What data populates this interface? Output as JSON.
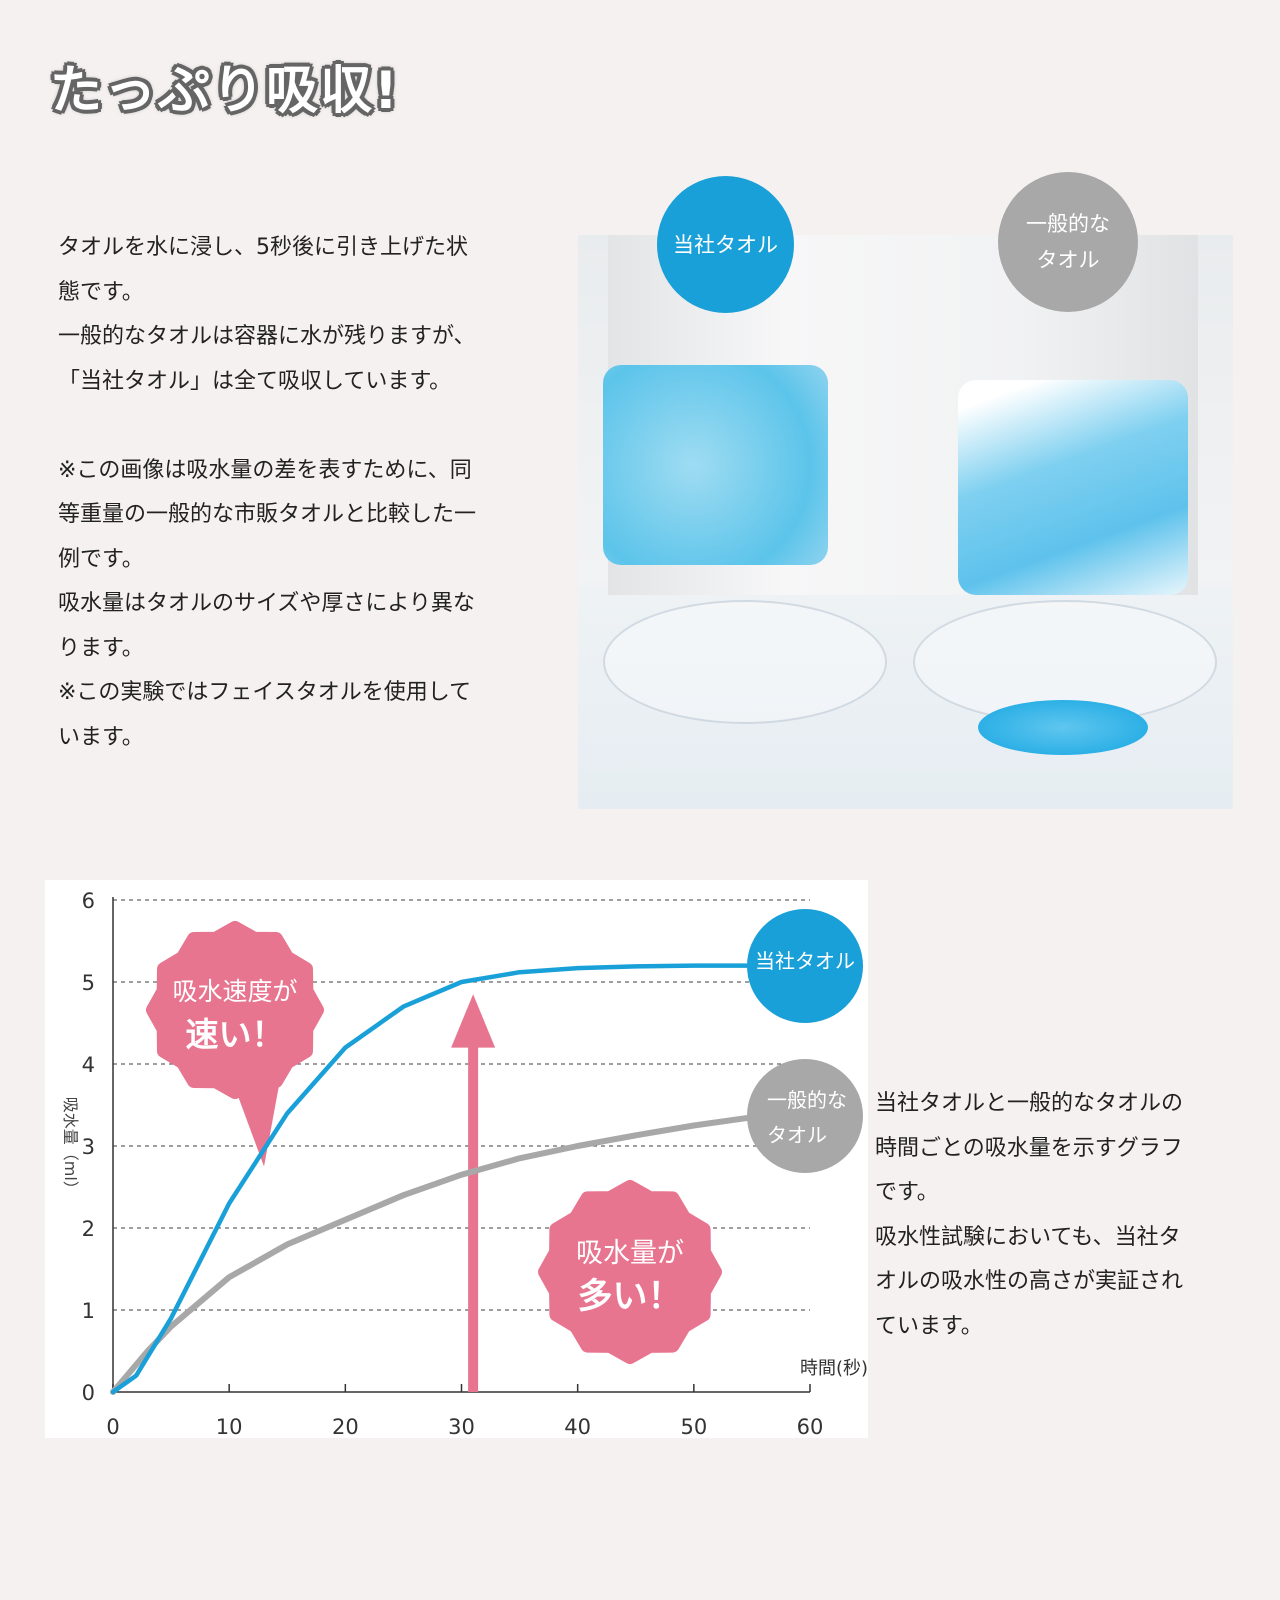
{
  "heading": "たっぷり吸収!",
  "left_text": {
    "lines": [
      "タオルを水に浸し、5秒後に引き上げた状",
      "態です。",
      "一般的なタオルは容器に水が残りますが、",
      "「当社タオル」は全て吸収しています。",
      "",
      "※この画像は吸水量の差を表すために、同",
      "等重量の一般的な市販タオルと比較した一",
      "例です。",
      "吸水量はタオルのサイズや厚さにより異な",
      "ります。",
      "※この実験ではフェイスタオルを使用して",
      "います。"
    ]
  },
  "photo": {
    "badge_ours": "当社タオル",
    "badge_general_lines": [
      "一般的な",
      "タオル"
    ],
    "colors": {
      "ours": "#1aa0d8",
      "general": "#a8a8a8"
    }
  },
  "right_text": {
    "lines": [
      "当社タオルと一般的なタオルの",
      "時間ごとの吸水量を示すグラフ",
      "です。",
      "吸水性試験においても、当社タ",
      "オルの吸水性の高さが実証され",
      "ています。"
    ]
  },
  "chart_data": {
    "type": "line",
    "xlabel": "時間(秒)",
    "ylabel": "吸水量（ml）",
    "xlim": [
      0,
      60
    ],
    "ylim": [
      0,
      6
    ],
    "xticks": [
      "0",
      "10",
      "20",
      "30",
      "40",
      "50",
      "60"
    ],
    "yticks": [
      "0",
      "1",
      "2",
      "3",
      "4",
      "5",
      "6"
    ],
    "grid": "horizontal dashed",
    "series": [
      {
        "name": "当社タオル",
        "color": "#1aa0d8",
        "x": [
          0,
          2,
          5,
          10,
          15,
          20,
          25,
          30,
          35,
          40,
          45,
          50,
          55
        ],
        "y": [
          0,
          0.2,
          0.9,
          2.3,
          3.4,
          4.2,
          4.7,
          5.0,
          5.12,
          5.17,
          5.19,
          5.2,
          5.2
        ]
      },
      {
        "name": "一般的なタオル",
        "label_lines": [
          "一般的な",
          "タオル"
        ],
        "color": "#a8a8a8",
        "x": [
          0,
          3,
          5,
          10,
          15,
          20,
          25,
          30,
          35,
          40,
          45,
          50,
          55
        ],
        "y": [
          0,
          0.5,
          0.8,
          1.4,
          1.8,
          2.1,
          2.4,
          2.65,
          2.85,
          3.0,
          3.13,
          3.25,
          3.35
        ]
      }
    ],
    "annotations": {
      "speed_bubble": [
        "吸水速度が",
        "速い！"
      ],
      "amount_bubble": [
        "吸水量が",
        "多い！"
      ],
      "arrow_at_x": 31,
      "accent_color": "#e8758f"
    }
  }
}
